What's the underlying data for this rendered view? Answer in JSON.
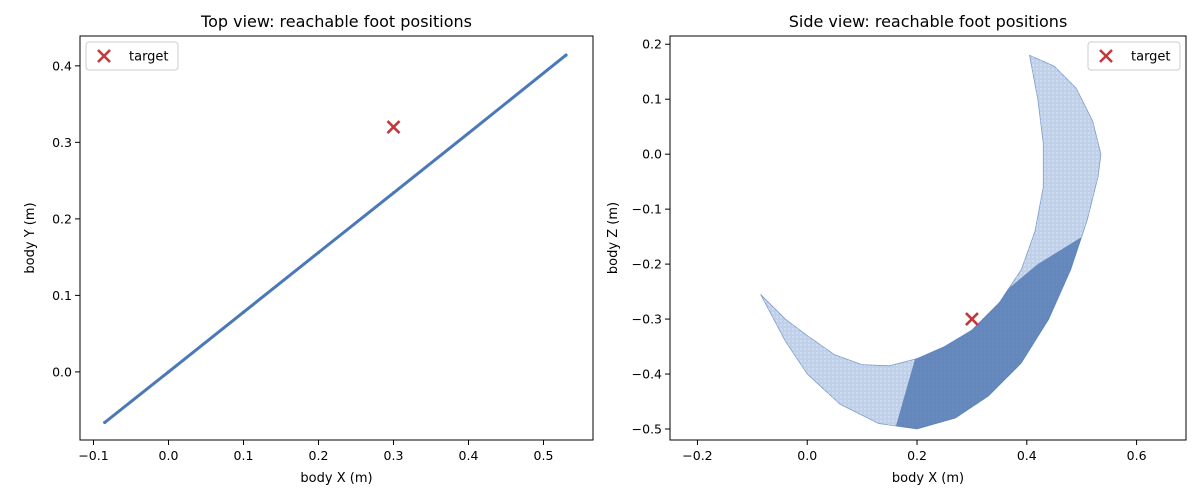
{
  "chart_data": [
    {
      "type": "scatter",
      "title": "Top view: reachable foot positions",
      "xlabel": "body X (m)",
      "ylabel": "body Y (m)",
      "xlim": [
        -0.118,
        0.566
      ],
      "ylim": [
        -0.089,
        0.439
      ],
      "xticks": [
        -0.1,
        0.0,
        0.1,
        0.2,
        0.3,
        0.4,
        0.5
      ],
      "xtick_labels": [
        "−0.1",
        "0.0",
        "0.1",
        "0.2",
        "0.3",
        "0.4",
        "0.5"
      ],
      "yticks": [
        0.0,
        0.1,
        0.2,
        0.3,
        0.4
      ],
      "ytick_labels": [
        "0.0",
        "0.1",
        "0.2",
        "0.3",
        "0.4"
      ],
      "grid": false,
      "legend_position": "top-left",
      "series": [
        {
          "kind": "reachable",
          "color": "#4a78b8",
          "shape": "line",
          "x": [
            -0.085,
            0.0,
            0.1,
            0.2,
            0.3,
            0.4,
            0.53
          ],
          "y": [
            -0.066,
            0.0,
            0.078,
            0.156,
            0.234,
            0.312,
            0.414
          ]
        },
        {
          "name": "target",
          "kind": "target",
          "color": "#c0393b",
          "marker": "x",
          "x": [
            0.3
          ],
          "y": [
            0.32
          ]
        }
      ]
    },
    {
      "type": "scatter",
      "title": "Side view: reachable foot positions",
      "xlabel": "body X (m)",
      "ylabel": "body Z (m)",
      "xlim": [
        -0.25,
        0.69
      ],
      "ylim": [
        -0.52,
        0.215
      ],
      "xticks": [
        -0.2,
        0.0,
        0.2,
        0.4,
        0.6
      ],
      "xtick_labels": [
        "−0.2",
        "0.0",
        "0.2",
        "0.4",
        "0.6"
      ],
      "yticks": [
        0.2,
        0.1,
        0.0,
        -0.1,
        -0.2,
        -0.3,
        -0.4,
        -0.5
      ],
      "ytick_labels": [
        "0.2",
        "0.1",
        "0.0",
        "−0.1",
        "−0.2",
        "−0.3",
        "−0.4",
        "−0.5"
      ],
      "grid": false,
      "legend_position": "top-right",
      "series": [
        {
          "kind": "reachable",
          "color": "#4a78b8",
          "shape": "crescent",
          "outer_boundary": {
            "x": [
              -0.085,
              -0.04,
              0.0,
              0.06,
              0.13,
              0.2,
              0.27,
              0.33,
              0.39,
              0.44,
              0.48,
              0.51,
              0.53,
              0.535,
              0.52,
              0.49,
              0.45,
              0.405
            ],
            "y": [
              -0.255,
              -0.34,
              -0.4,
              -0.455,
              -0.49,
              -0.5,
              -0.48,
              -0.44,
              -0.38,
              -0.3,
              -0.21,
              -0.12,
              -0.04,
              0.0,
              0.06,
              0.12,
              0.16,
              0.18
            ]
          },
          "inner_boundary": {
            "x": [
              0.405,
              0.42,
              0.43,
              0.43,
              0.415,
              0.39,
              0.35,
              0.3,
              0.25,
              0.2,
              0.15,
              0.1,
              0.05,
              0.0,
              -0.04,
              -0.085
            ],
            "y": [
              0.18,
              0.1,
              0.02,
              -0.06,
              -0.14,
              -0.21,
              -0.27,
              -0.32,
              -0.35,
              -0.372,
              -0.385,
              -0.383,
              -0.365,
              -0.33,
              -0.3,
              -0.255
            ]
          }
        },
        {
          "name": "target",
          "kind": "target",
          "color": "#c0393b",
          "marker": "x",
          "x": [
            0.3
          ],
          "y": [
            -0.3
          ]
        }
      ]
    }
  ]
}
